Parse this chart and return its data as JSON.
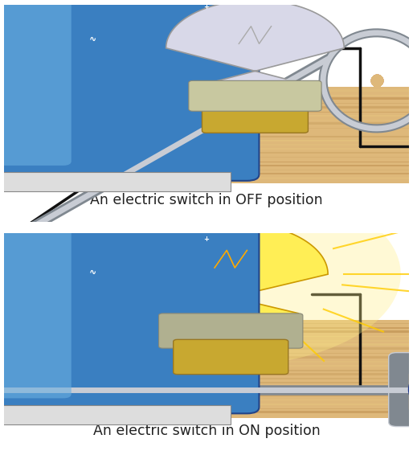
{
  "title_top": "An electric switch in OFF position",
  "title_bottom": "An electric switch in ON position",
  "wood_color_light": "#deb87a",
  "wood_color_mid": "#c8a060",
  "wood_color_dark": "#b88848",
  "background_color": "#ffffff",
  "wire_color_black": "#111111",
  "wire_color_red": "#dd1100",
  "battery_body_color": "#3a7fc1",
  "battery_body_light": "#6aaee0",
  "battery_neg_color": "#888888",
  "battery_pos_color": "#dddddd",
  "switch_metal_dark": "#808890",
  "switch_metal_light": "#c8ccd4",
  "knob_color": "#3355aa",
  "knob_edge": "#1a3388",
  "bulb_off_glass": "#d8d8e8",
  "bulb_on_glass": "#ffee55",
  "bulb_glow": "#ffee88",
  "bulb_base_color": "#c8c8a0",
  "bulb_cap_color": "#c8a830",
  "label_fontsize": 12.5,
  "figsize": [
    5.14,
    5.66
  ],
  "dpi": 100
}
